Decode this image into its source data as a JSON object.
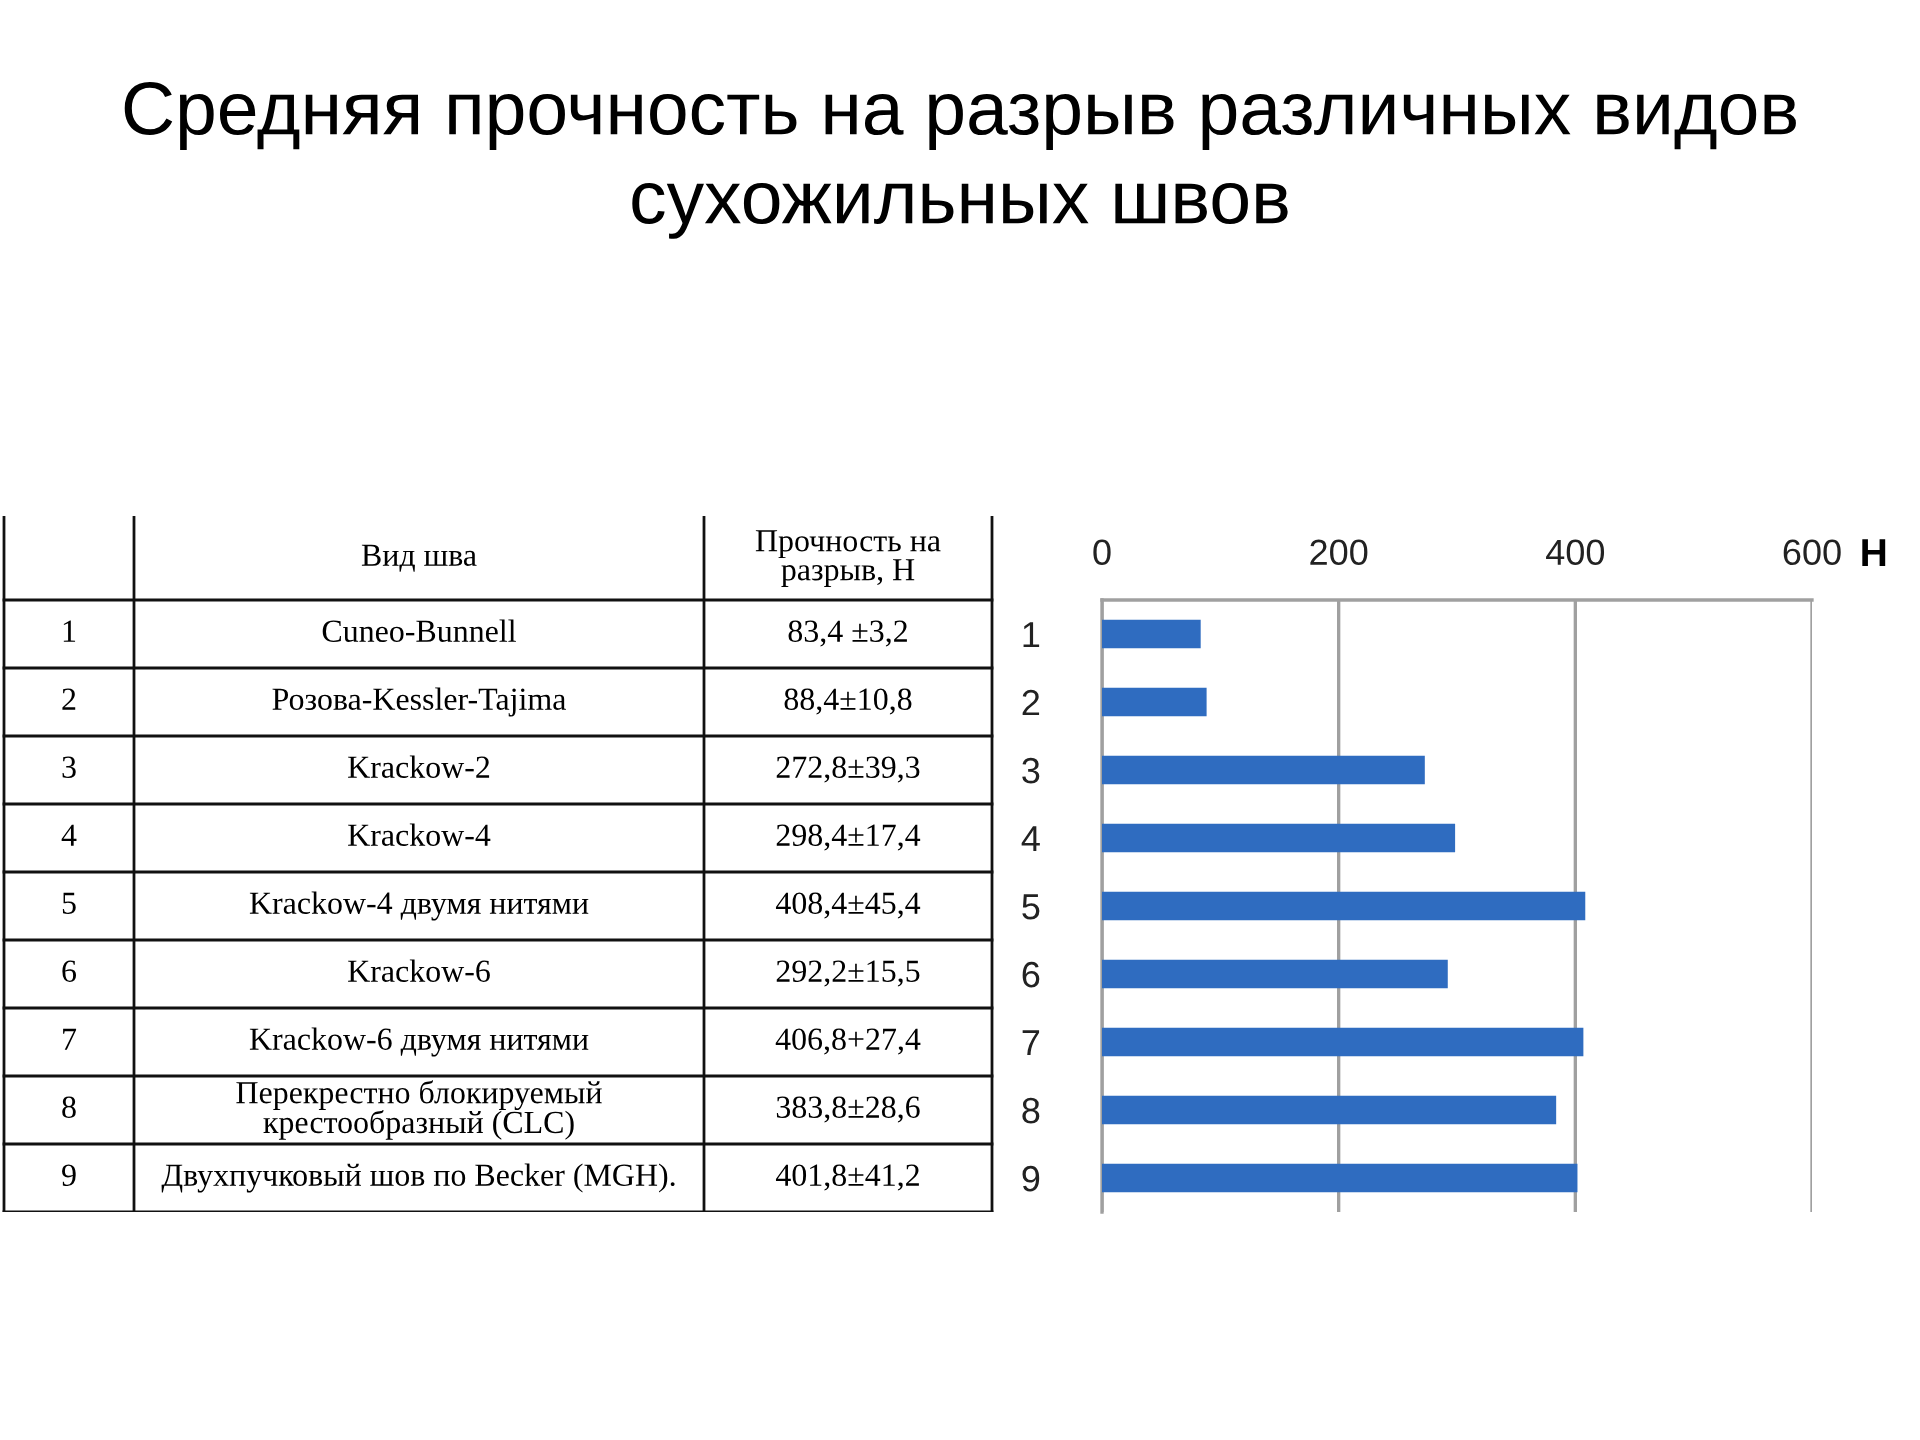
{
  "chart_data": {
    "type": "bar",
    "orientation": "horizontal",
    "title": "Средняя прочность на разрыв различных видов сухожильных швов",
    "xlabel": "Н",
    "categories": [
      "1",
      "2",
      "3",
      "4",
      "5",
      "6",
      "7",
      "8",
      "9"
    ],
    "values": [
      83.4,
      88.4,
      272.8,
      298.4,
      408.4,
      292.2,
      406.8,
      383.8,
      401.8
    ],
    "value_labels": [
      "83,4 ±3,2",
      "88,4±10,8",
      "272,8±39,3",
      "298,4±17,4",
      "408,4±45,4",
      "292,2±15,5",
      "406,8+27,4",
      "383,8±28,6",
      "401,8±41,2"
    ],
    "color": "#2f6cc0",
    "xlim": [
      0,
      600
    ],
    "xticks": [
      0,
      200,
      400,
      600
    ],
    "grid": "x",
    "annotations": [
      "Вид шва",
      "Прочность на разрыв, Н",
      "Cuneo-Bunnell",
      "Розова-Kessler-Tajima",
      "Krackow-2",
      "Krackow-4",
      "Krackow-4 двумя нитями",
      "Krackow-6",
      "Krackow-6 двумя нитями",
      "Перекрестно блокируемый крестообразный (CLC)",
      "Двухпучковый шов по Becker (MGH)."
    ]
  }
}
